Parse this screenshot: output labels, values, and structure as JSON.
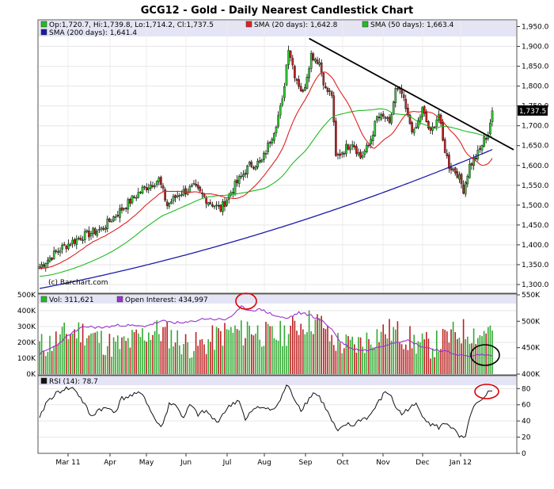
{
  "chart_data": [
    {
      "type": "candlestick",
      "title": "GCG12 - Gold - Daily Nearest Candlestick Chart",
      "legend": {
        "ohlc": "Op:1,720.7, Hi:1,739.8, Lo:1,714.2, Cl:1,737.5",
        "sma20": "SMA (20 days): 1,642.8",
        "sma50": "SMA (50 days): 1,663.4",
        "sma200": "SMA (200 days): 1,641.4"
      },
      "watermark": "(c) Barchart.com",
      "last_price_label": "1,737.5",
      "last_price": 1737.5,
      "ylim": [
        1280,
        1965
      ],
      "yticks": [
        "1,300.0",
        "1,350.0",
        "1,400.0",
        "1,450.0",
        "1,500.0",
        "1,550.0",
        "1,600.0",
        "1,650.0",
        "1,700.0",
        "1,750.0",
        "1,800.0",
        "1,850.0",
        "1,900.0",
        "1,950.0"
      ],
      "ytick_values": [
        1300,
        1350,
        1400,
        1450,
        1500,
        1550,
        1600,
        1650,
        1700,
        1750,
        1800,
        1850,
        1900,
        1950
      ],
      "xticks": [
        "Mar 11",
        "Apr",
        "May",
        "Jun",
        "Jul",
        "Aug",
        "Sep",
        "Oct",
        "Nov",
        "Dec",
        "Jan 12"
      ],
      "close_anchors": [
        [
          0,
          1345
        ],
        [
          10,
          1390
        ],
        [
          20,
          1420
        ],
        [
          30,
          1440
        ],
        [
          40,
          1490
        ],
        [
          50,
          1540
        ],
        [
          58,
          1565
        ],
        [
          62,
          1500
        ],
        [
          68,
          1530
        ],
        [
          75,
          1545
        ],
        [
          82,
          1510
        ],
        [
          88,
          1490
        ],
        [
          95,
          1550
        ],
        [
          102,
          1600
        ],
        [
          108,
          1610
        ],
        [
          114,
          1690
        ],
        [
          118,
          1760
        ],
        [
          121,
          1900
        ],
        [
          124,
          1830
        ],
        [
          128,
          1780
        ],
        [
          132,
          1880
        ],
        [
          136,
          1860
        ],
        [
          139,
          1790
        ],
        [
          142,
          1780
        ],
        [
          144,
          1620
        ],
        [
          148,
          1640
        ],
        [
          152,
          1660
        ],
        [
          156,
          1620
        ],
        [
          160,
          1650
        ],
        [
          164,
          1720
        ],
        [
          168,
          1720
        ],
        [
          170,
          1700
        ],
        [
          173,
          1790
        ],
        [
          176,
          1780
        ],
        [
          179,
          1720
        ],
        [
          182,
          1680
        ],
        [
          186,
          1740
        ],
        [
          190,
          1680
        ],
        [
          194,
          1730
        ],
        [
          196,
          1660
        ],
        [
          199,
          1600
        ],
        [
          203,
          1580
        ],
        [
          206,
          1540
        ],
        [
          209,
          1600
        ],
        [
          212,
          1620
        ],
        [
          214,
          1640
        ],
        [
          216,
          1665
        ],
        [
          218,
          1680
        ],
        [
          220,
          1738
        ]
      ],
      "trendline": [
        [
          131,
          1920
        ],
        [
          222,
          1657
        ]
      ],
      "series": [
        {
          "name": "SMA (20 days)",
          "color": "#dd2222"
        },
        {
          "name": "SMA (50 days)",
          "color": "#22bb22"
        },
        {
          "name": "SMA (200 days)",
          "color": "#1a1aaa"
        }
      ]
    },
    {
      "type": "bar",
      "legend": {
        "vol": "Vol: 311,621",
        "oi": "Open Interest: 434,997"
      },
      "left_ticks": [
        "0K",
        "100K",
        "200K",
        "300K",
        "400K",
        "500K"
      ],
      "left_values": [
        0,
        100000,
        200000,
        300000,
        400000,
        500000
      ],
      "right_ticks": [
        "400K",
        "450K",
        "500K",
        "550K"
      ],
      "right_values": [
        400000,
        450000,
        500000,
        550000
      ],
      "vol_ylim": [
        0,
        500000
      ],
      "oi_ylim": [
        400000,
        550000
      ],
      "oi_anchors": [
        [
          0,
          438000
        ],
        [
          8,
          454000
        ],
        [
          15,
          476000
        ],
        [
          22,
          490000
        ],
        [
          30,
          488000
        ],
        [
          40,
          493000
        ],
        [
          50,
          490000
        ],
        [
          60,
          500000
        ],
        [
          70,
          496000
        ],
        [
          80,
          505000
        ],
        [
          90,
          503000
        ],
        [
          95,
          514000
        ],
        [
          98,
          527000
        ],
        [
          102,
          521000
        ],
        [
          108,
          522000
        ],
        [
          114,
          511000
        ],
        [
          120,
          505000
        ],
        [
          126,
          516000
        ],
        [
          132,
          511000
        ],
        [
          138,
          499000
        ],
        [
          142,
          485000
        ],
        [
          146,
          462000
        ],
        [
          152,
          447000
        ],
        [
          160,
          445000
        ],
        [
          170,
          458000
        ],
        [
          178,
          465000
        ],
        [
          186,
          452000
        ],
        [
          194,
          445000
        ],
        [
          200,
          440000
        ],
        [
          208,
          433000
        ],
        [
          214,
          437000
        ],
        [
          220,
          435000
        ]
      ]
    },
    {
      "type": "line",
      "legend": "RSI (14): 78.7",
      "ylim": [
        0,
        95
      ],
      "yticks": [
        "0",
        "20",
        "40",
        "60",
        "80"
      ],
      "ytick_values": [
        0,
        20,
        40,
        60,
        80
      ],
      "anchors": [
        [
          0,
          42
        ],
        [
          3,
          62
        ],
        [
          7,
          72
        ],
        [
          12,
          80
        ],
        [
          17,
          80
        ],
        [
          22,
          60
        ],
        [
          25,
          45
        ],
        [
          29,
          55
        ],
        [
          34,
          55
        ],
        [
          37,
          52
        ],
        [
          40,
          68
        ],
        [
          46,
          72
        ],
        [
          50,
          75
        ],
        [
          54,
          52
        ],
        [
          58,
          34
        ],
        [
          60,
          36
        ],
        [
          63,
          62
        ],
        [
          67,
          58
        ],
        [
          70,
          42
        ],
        [
          73,
          60
        ],
        [
          77,
          48
        ],
        [
          81,
          52
        ],
        [
          86,
          38
        ],
        [
          90,
          52
        ],
        [
          94,
          62
        ],
        [
          97,
          66
        ],
        [
          100,
          40
        ],
        [
          103,
          52
        ],
        [
          106,
          56
        ],
        [
          110,
          58
        ],
        [
          113,
          52
        ],
        [
          117,
          65
        ],
        [
          120,
          85
        ],
        [
          123,
          72
        ],
        [
          127,
          54
        ],
        [
          130,
          64
        ],
        [
          133,
          75
        ],
        [
          136,
          70
        ],
        [
          139,
          56
        ],
        [
          142,
          40
        ],
        [
          145,
          26
        ],
        [
          149,
          36
        ],
        [
          152,
          34
        ],
        [
          156,
          42
        ],
        [
          160,
          45
        ],
        [
          164,
          60
        ],
        [
          168,
          76
        ],
        [
          170,
          74
        ],
        [
          173,
          58
        ],
        [
          176,
          48
        ],
        [
          179,
          55
        ],
        [
          183,
          60
        ],
        [
          186,
          48
        ],
        [
          190,
          36
        ],
        [
          194,
          32
        ],
        [
          198,
          38
        ],
        [
          201,
          30
        ],
        [
          204,
          20
        ],
        [
          207,
          18
        ],
        [
          209,
          46
        ],
        [
          212,
          60
        ],
        [
          216,
          66
        ],
        [
          218,
          75
        ],
        [
          220,
          79
        ]
      ]
    }
  ]
}
